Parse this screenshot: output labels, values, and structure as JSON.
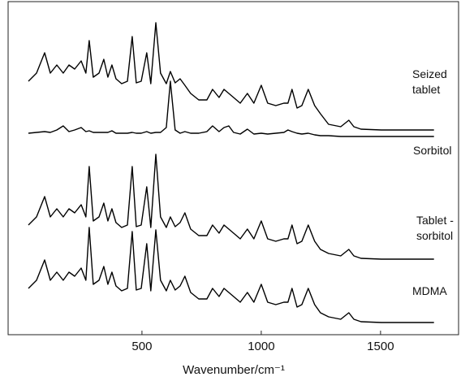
{
  "chart_data": {
    "type": "line",
    "x_label": "Wavenumber/cm⁻¹",
    "x": [
      24,
      58,
      92,
      116,
      143,
      170,
      194,
      218,
      245,
      265,
      279,
      296,
      320,
      340,
      357,
      374,
      391,
      415,
      439,
      459,
      476,
      497,
      520,
      537,
      558,
      578,
      602,
      619,
      639,
      660,
      680,
      704,
      738,
      772,
      796,
      823,
      844,
      864,
      884,
      912,
      942,
      969,
      1000,
      1027,
      1061,
      1095,
      1112,
      1129,
      1150,
      1170,
      1197,
      1224,
      1248,
      1282,
      1333,
      1367,
      1388,
      1418,
      1503,
      1605,
      1724
    ],
    "xlim": [
      -61,
      1827
    ],
    "xticks": [
      500,
      1000,
      1500
    ],
    "ylim": [
      0,
      410
    ],
    "series": [
      {
        "name": "Seized tablet",
        "color": "#000000",
        "values": [
          312,
          322,
          347,
          322,
          332,
          322,
          332,
          327,
          337,
          322,
          362,
          317,
          322,
          339,
          317,
          332,
          315,
          309,
          312,
          367,
          310,
          312,
          347,
          309,
          384,
          322,
          309,
          324,
          310,
          315,
          307,
          297,
          289,
          289,
          302,
          292,
          302,
          297,
          292,
          285,
          297,
          285,
          307,
          285,
          282,
          285,
          285,
          302,
          279,
          282,
          302,
          282,
          272,
          259,
          256,
          264,
          256,
          253,
          252,
          252,
          252
        ]
      },
      {
        "name": "Sorbitol",
        "color": "#000000",
        "values": [
          248,
          249,
          250,
          249,
          252,
          257,
          250,
          252,
          255,
          250,
          251,
          249,
          249,
          249,
          249,
          251,
          248,
          248,
          248,
          249,
          248,
          248,
          250,
          248,
          249,
          249,
          255,
          312,
          252,
          248,
          250,
          248,
          248,
          250,
          257,
          250,
          255,
          257,
          249,
          247,
          253,
          247,
          248,
          247,
          248,
          249,
          252,
          250,
          248,
          247,
          248,
          246,
          245,
          245,
          244,
          244,
          244,
          244,
          244,
          244,
          244
        ]
      },
      {
        "name": "Tablet -sorbitol",
        "color": "#000000",
        "values": [
          135,
          145,
          170,
          145,
          155,
          145,
          155,
          150,
          160,
          145,
          207,
          140,
          145,
          162,
          140,
          155,
          138,
          132,
          135,
          207,
          133,
          135,
          182,
          132,
          222,
          145,
          132,
          145,
          133,
          138,
          150,
          130,
          122,
          122,
          135,
          125,
          135,
          130,
          125,
          118,
          130,
          118,
          140,
          118,
          115,
          118,
          118,
          135,
          112,
          115,
          135,
          115,
          105,
          100,
          97,
          105,
          97,
          94,
          93,
          93,
          93
        ]
      },
      {
        "name": "MDMA",
        "color": "#000000",
        "values": [
          57,
          67,
          92,
          67,
          77,
          67,
          77,
          72,
          82,
          67,
          132,
          62,
          67,
          84,
          62,
          77,
          60,
          54,
          57,
          127,
          55,
          57,
          112,
          54,
          129,
          67,
          54,
          67,
          55,
          60,
          72,
          52,
          44,
          44,
          57,
          47,
          57,
          52,
          47,
          40,
          52,
          40,
          62,
          40,
          37,
          40,
          40,
          57,
          34,
          37,
          57,
          37,
          27,
          22,
          19,
          27,
          19,
          16,
          15,
          15,
          15
        ]
      }
    ]
  }
}
